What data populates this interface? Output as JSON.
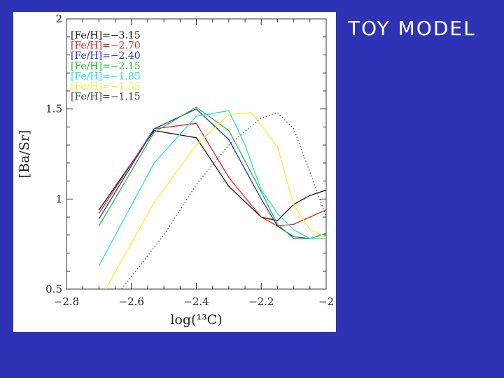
{
  "slide": {
    "title": "TOY MODEL"
  },
  "colors": {
    "background": "#2e33b5",
    "panel": "#ffffff",
    "title_text": "#ffffff"
  },
  "chart_data": {
    "type": "line",
    "xlabel": "log(¹³C)",
    "ylabel": "[Ba/Sr]",
    "xlim": [
      -2.8,
      -2.0
    ],
    "ylim": [
      0.5,
      2.0
    ],
    "x_ticks": [
      -2.8,
      -2.6,
      -2.4,
      -2.2,
      -2.0
    ],
    "x_tick_labels": [
      "−2.8",
      "−2.6",
      "−2.4",
      "−2.2",
      "−2"
    ],
    "y_ticks": [
      0.5,
      1.0,
      1.5,
      2.0
    ],
    "y_tick_labels": [
      "0.5",
      "1",
      "1.5",
      "2"
    ],
    "grid": false,
    "legend_position": "top-left",
    "series": [
      {
        "name": "[Fe/H]=−3.15",
        "color": "#111111",
        "dash": false,
        "x": [
          -2.7,
          -2.53,
          -2.4,
          -2.3,
          -2.2,
          -2.15,
          -2.1,
          -2.05,
          -2.0
        ],
        "y": [
          0.94,
          1.38,
          1.34,
          1.07,
          0.9,
          0.88,
          0.97,
          1.02,
          1.05
        ]
      },
      {
        "name": "[Fe/H]=−2.70",
        "color": "#e02020",
        "dash": false,
        "x": [
          -2.7,
          -2.53,
          -2.4,
          -2.3,
          -2.2,
          -2.15,
          -2.1,
          -2.05,
          -2.0
        ],
        "y": [
          0.92,
          1.39,
          1.42,
          1.12,
          0.9,
          0.85,
          0.86,
          0.9,
          0.94
        ]
      },
      {
        "name": "[Fe/H]=−2.40",
        "color": "#2030d0",
        "dash": false,
        "x": [
          -2.7,
          -2.53,
          -2.4,
          -2.3,
          -2.2,
          -2.15,
          -2.1,
          -2.05,
          -2.0
        ],
        "y": [
          0.89,
          1.39,
          1.5,
          1.33,
          1.0,
          0.85,
          0.79,
          0.78,
          0.81
        ]
      },
      {
        "name": "[Fe/H]=−2.15",
        "color": "#22c022",
        "dash": false,
        "x": [
          -2.7,
          -2.53,
          -2.4,
          -2.3,
          -2.2,
          -2.15,
          -2.1,
          -2.05,
          -2.0
        ],
        "y": [
          0.85,
          1.37,
          1.51,
          1.38,
          1.04,
          0.86,
          0.78,
          0.78,
          0.81
        ]
      },
      {
        "name": "[Fe/H]=−1.85",
        "color": "#22e0e8",
        "dash": false,
        "x": [
          -2.7,
          -2.53,
          -2.4,
          -2.3,
          -2.25,
          -2.2,
          -2.15,
          -2.1,
          -2.05,
          -2.0
        ],
        "y": [
          0.63,
          1.2,
          1.46,
          1.49,
          1.3,
          1.05,
          0.92,
          0.83,
          0.78,
          0.78
        ]
      },
      {
        "name": "[Fe/H]=−1.55",
        "color": "#f0f030",
        "dash": false,
        "x": [
          -2.68,
          -2.53,
          -2.4,
          -2.3,
          -2.23,
          -2.15,
          -2.1,
          -2.05,
          -2.0
        ],
        "y": [
          0.5,
          0.98,
          1.3,
          1.47,
          1.48,
          1.29,
          0.97,
          0.83,
          0.79
        ]
      },
      {
        "name": "[Fe/H]=−1.15",
        "color": "#444444",
        "dash": true,
        "x": [
          -2.63,
          -2.5,
          -2.4,
          -2.3,
          -2.2,
          -2.15,
          -2.1,
          -2.05,
          -2.0
        ],
        "y": [
          0.5,
          0.8,
          1.08,
          1.3,
          1.45,
          1.48,
          1.39,
          1.15,
          0.9
        ]
      }
    ]
  }
}
